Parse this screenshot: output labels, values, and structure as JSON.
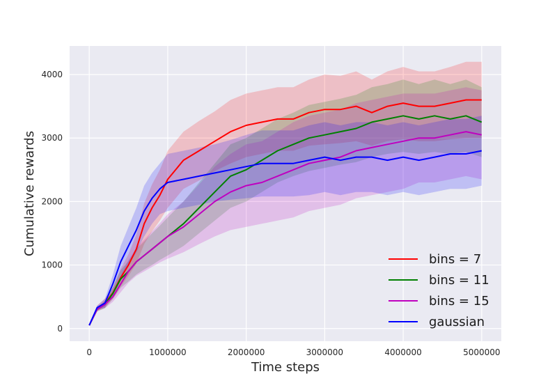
{
  "chart_data": {
    "type": "line",
    "title": "",
    "xlabel": "Time steps",
    "ylabel": "Cumulative rewards",
    "xlim": [
      -250000,
      5250000
    ],
    "ylim": [
      -200,
      4450
    ],
    "xticks": [
      0,
      1000000,
      2000000,
      3000000,
      4000000,
      5000000
    ],
    "xtick_labels": [
      "0",
      "1000000",
      "2000000",
      "3000000",
      "4000000",
      "5000000"
    ],
    "yticks": [
      0,
      1000,
      2000,
      3000,
      4000
    ],
    "ytick_labels": [
      "0",
      "1000",
      "2000",
      "3000",
      "4000"
    ],
    "grid": true,
    "legend_position": "lower-right",
    "series": [
      {
        "name": "bins = 7",
        "color": "#ff0000",
        "band_color": "#ff0000",
        "x": [
          0,
          100000,
          200000,
          300000,
          400000,
          500000,
          600000,
          700000,
          800000,
          900000,
          1000000,
          1200000,
          1400000,
          1600000,
          1800000,
          2000000,
          2200000,
          2400000,
          2600000,
          2800000,
          3000000,
          3200000,
          3400000,
          3600000,
          3800000,
          4000000,
          4200000,
          4400000,
          4600000,
          4800000,
          5000000
        ],
        "y": [
          50,
          320,
          400,
          560,
          800,
          1000,
          1250,
          1650,
          1900,
          2100,
          2350,
          2650,
          2800,
          2950,
          3100,
          3200,
          3250,
          3300,
          3300,
          3400,
          3450,
          3450,
          3500,
          3400,
          3500,
          3550,
          3500,
          3500,
          3550,
          3600,
          3600
        ],
        "lower": [
          50,
          280,
          330,
          470,
          660,
          830,
          1020,
          1330,
          1530,
          1700,
          1900,
          2200,
          2330,
          2480,
          2600,
          2700,
          2750,
          2800,
          2800,
          2880,
          2900,
          2920,
          2950,
          2880,
          2950,
          2980,
          2950,
          2950,
          2980,
          3000,
          3000
        ],
        "upper": [
          50,
          360,
          470,
          650,
          940,
          1170,
          1480,
          1970,
          2270,
          2500,
          2800,
          3100,
          3270,
          3420,
          3600,
          3700,
          3750,
          3800,
          3800,
          3920,
          4000,
          3980,
          4050,
          3920,
          4050,
          4120,
          4050,
          4050,
          4120,
          4200,
          4200
        ]
      },
      {
        "name": "bins = 11",
        "color": "#008000",
        "band_color": "#008000",
        "x": [
          0,
          100000,
          200000,
          300000,
          400000,
          500000,
          600000,
          700000,
          800000,
          900000,
          1000000,
          1200000,
          1400000,
          1600000,
          1800000,
          2000000,
          2200000,
          2400000,
          2600000,
          2800000,
          3000000,
          3200000,
          3400000,
          3600000,
          3800000,
          4000000,
          4200000,
          4400000,
          4600000,
          4800000,
          5000000
        ],
        "y": [
          50,
          300,
          380,
          550,
          780,
          900,
          1050,
          1150,
          1250,
          1350,
          1450,
          1650,
          1900,
          2150,
          2400,
          2500,
          2650,
          2800,
          2900,
          3000,
          3050,
          3100,
          3150,
          3250,
          3300,
          3350,
          3300,
          3350,
          3300,
          3350,
          3250
        ],
        "lower": [
          50,
          270,
          320,
          460,
          640,
          740,
          850,
          930,
          1000,
          1080,
          1150,
          1300,
          1500,
          1700,
          1900,
          2000,
          2150,
          2300,
          2400,
          2480,
          2530,
          2580,
          2620,
          2700,
          2750,
          2780,
          2750,
          2780,
          2750,
          2780,
          2700
        ],
        "upper": [
          50,
          330,
          440,
          640,
          920,
          1060,
          1250,
          1370,
          1500,
          1620,
          1750,
          2000,
          2300,
          2600,
          2900,
          3000,
          3150,
          3300,
          3400,
          3520,
          3570,
          3620,
          3680,
          3800,
          3850,
          3920,
          3850,
          3920,
          3850,
          3920,
          3800
        ]
      },
      {
        "name": "bins = 15",
        "color": "#bf00bf",
        "band_color": "#bf00bf",
        "x": [
          0,
          100000,
          200000,
          300000,
          400000,
          500000,
          600000,
          700000,
          800000,
          900000,
          1000000,
          1200000,
          1400000,
          1600000,
          1800000,
          2000000,
          2200000,
          2400000,
          2600000,
          2800000,
          3000000,
          3200000,
          3400000,
          3600000,
          3800000,
          4000000,
          4200000,
          4400000,
          4600000,
          4800000,
          5000000
        ],
        "y": [
          50,
          300,
          380,
          500,
          700,
          900,
          1050,
          1150,
          1250,
          1350,
          1450,
          1600,
          1800,
          2000,
          2150,
          2250,
          2300,
          2400,
          2500,
          2600,
          2650,
          2700,
          2800,
          2850,
          2900,
          2950,
          3000,
          3000,
          3050,
          3100,
          3050
        ],
        "lower": [
          50,
          270,
          320,
          420,
          570,
          720,
          830,
          900,
          970,
          1040,
          1100,
          1200,
          1330,
          1450,
          1550,
          1600,
          1650,
          1700,
          1750,
          1850,
          1900,
          1950,
          2050,
          2100,
          2150,
          2200,
          2300,
          2300,
          2350,
          2400,
          2350
        ],
        "upper": [
          50,
          330,
          440,
          580,
          830,
          1080,
          1270,
          1400,
          1530,
          1660,
          1800,
          2000,
          2270,
          2550,
          2750,
          2900,
          2950,
          3100,
          3250,
          3350,
          3400,
          3450,
          3550,
          3600,
          3650,
          3700,
          3700,
          3700,
          3750,
          3800,
          3750
        ]
      },
      {
        "name": "gaussian",
        "color": "#0000ff",
        "band_color": "#0000ff",
        "x": [
          0,
          100000,
          200000,
          300000,
          400000,
          500000,
          600000,
          700000,
          800000,
          900000,
          1000000,
          1200000,
          1400000,
          1600000,
          1800000,
          2000000,
          2200000,
          2400000,
          2600000,
          2800000,
          3000000,
          3200000,
          3400000,
          3600000,
          3800000,
          4000000,
          4200000,
          4400000,
          4600000,
          4800000,
          5000000
        ],
        "y": [
          50,
          330,
          400,
          700,
          1050,
          1300,
          1550,
          1850,
          2050,
          2200,
          2300,
          2350,
          2400,
          2450,
          2500,
          2550,
          2600,
          2600,
          2600,
          2650,
          2700,
          2650,
          2700,
          2700,
          2650,
          2700,
          2650,
          2700,
          2750,
          2750,
          2800
        ],
        "lower": [
          50,
          300,
          330,
          560,
          800,
          1000,
          1200,
          1450,
          1650,
          1800,
          1850,
          1900,
          1950,
          2000,
          2030,
          2050,
          2080,
          2080,
          2080,
          2100,
          2150,
          2100,
          2150,
          2150,
          2100,
          2150,
          2100,
          2150,
          2200,
          2200,
          2250
        ],
        "upper": [
          50,
          360,
          470,
          840,
          1300,
          1600,
          1900,
          2250,
          2450,
          2600,
          2750,
          2800,
          2850,
          2900,
          2970,
          3050,
          3120,
          3120,
          3120,
          3200,
          3250,
          3200,
          3250,
          3250,
          3200,
          3250,
          3200,
          3250,
          3300,
          3300,
          3350
        ]
      }
    ]
  }
}
